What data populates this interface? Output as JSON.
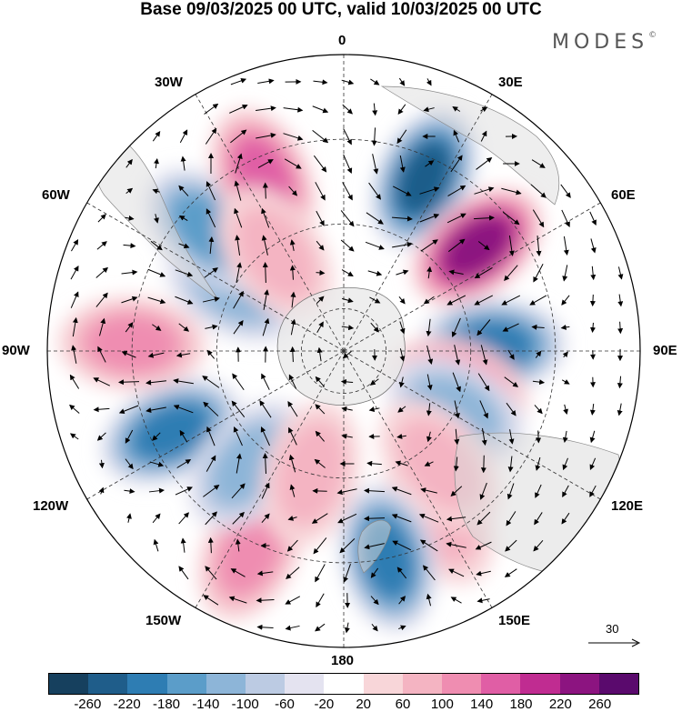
{
  "title": "Base 09/03/2025 00 UTC, valid 10/03/2025 00 UTC",
  "brand": "MODES",
  "brand_mark": "©",
  "longitude_labels": {
    "lon_0": "0",
    "lon_30e": "30E",
    "lon_60e": "60E",
    "lon_90e": "90E",
    "lon_120e": "120E",
    "lon_150e": "150E",
    "lon_180": "180",
    "lon_150w": "150W",
    "lon_120w": "120W",
    "lon_90w": "90W",
    "lon_60w": "60W",
    "lon_30w": "30W"
  },
  "reference_vector": "30",
  "colorbar": {
    "colors": [
      "#16405e",
      "#1f5d8a",
      "#2e7db3",
      "#5b9dc9",
      "#8db5d8",
      "#bccbe3",
      "#e4e3f0",
      "#ffffff",
      "#f8d6d9",
      "#f4b4c2",
      "#ef8db1",
      "#e05ea5",
      "#c02c91",
      "#8c1480",
      "#5a0a6d"
    ],
    "ticks": [
      "-260",
      "-220",
      "-180",
      "-140",
      "-100",
      "-60",
      "-20",
      "20",
      "60",
      "100",
      "140",
      "180",
      "220",
      "260"
    ]
  },
  "anomaly_features": [
    {
      "lon": 25,
      "lat": -45,
      "value": -220
    },
    {
      "lon": 52,
      "lat": -50,
      "value": 230
    },
    {
      "lon": 88,
      "lat": -55,
      "value": -190
    },
    {
      "lon": 108,
      "lat": -62,
      "value": 150
    },
    {
      "lon": 118,
      "lat": -60,
      "value": -90
    },
    {
      "lon": 150,
      "lat": -45,
      "value": 80
    },
    {
      "lon": 168,
      "lat": -40,
      "value": -180
    },
    {
      "lon": -155,
      "lat": -38,
      "value": 90
    },
    {
      "lon": -115,
      "lat": -45,
      "value": -200
    },
    {
      "lon": -88,
      "lat": -40,
      "value": 110
    },
    {
      "lon": -60,
      "lat": -60,
      "value": -90
    },
    {
      "lon": -48,
      "lat": -47,
      "value": -150
    },
    {
      "lon": -25,
      "lat": -45,
      "value": 160
    },
    {
      "lon": -35,
      "lat": -62,
      "value": 80
    },
    {
      "lon": 140,
      "lat": -55,
      "value": 60
    },
    {
      "lon": -140,
      "lat": -55,
      "value": -100
    },
    {
      "lon": -165,
      "lat": -60,
      "value": 50
    }
  ]
}
